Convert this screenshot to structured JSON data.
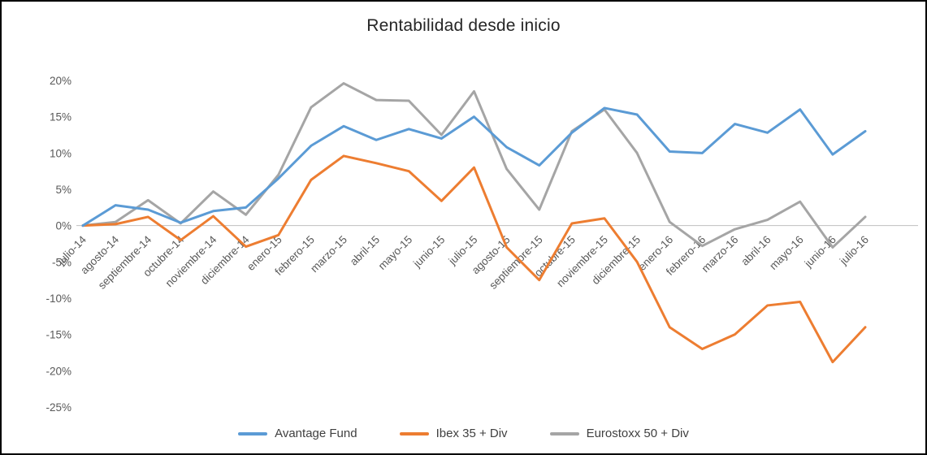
{
  "chart_data": {
    "type": "line",
    "title": "Rentabilidad desde inicio",
    "categories": [
      "julio-14",
      "agosto-14",
      "septiembre-14",
      "octubre-14",
      "noviembre-14",
      "diciembre-14",
      "enero-15",
      "febrero-15",
      "marzo-15",
      "abril-15",
      "mayo-15",
      "junio-15",
      "julio-15",
      "agosto-15",
      "septiembre-15",
      "octubre-15",
      "noviembre-15",
      "diciembre-15",
      "enero-16",
      "febrero-16",
      "marzo-16",
      "abril-16",
      "mayo-16",
      "junio-16",
      "julio-16"
    ],
    "series": [
      {
        "name": "Avantage Fund",
        "color": "#5B9BD5",
        "values": [
          0,
          2.8,
          2.2,
          0.4,
          2.0,
          2.5,
          6.5,
          11.0,
          13.7,
          11.8,
          13.3,
          12.0,
          15.0,
          10.8,
          8.3,
          12.8,
          16.2,
          15.3,
          10.2,
          10.0,
          14.0,
          12.8,
          16.0,
          9.8,
          13.0
        ]
      },
      {
        "name": "Ibex 35 + Div",
        "color": "#ED7D31",
        "values": [
          0,
          0.2,
          1.2,
          -2.0,
          1.3,
          -2.9,
          -1.3,
          6.3,
          9.6,
          8.6,
          7.5,
          3.4,
          8.0,
          -3.0,
          -7.5,
          0.3,
          1.0,
          -5.0,
          -14.0,
          -17.0,
          -15.0,
          -11.0,
          -10.5,
          -18.8,
          -14.0
        ]
      },
      {
        "name": "Eurostoxx 50 + Div",
        "color": "#A5A5A5",
        "values": [
          0,
          0.5,
          3.5,
          0.3,
          4.7,
          1.5,
          7.0,
          16.3,
          19.6,
          17.3,
          17.2,
          12.5,
          18.5,
          7.8,
          2.2,
          13.0,
          16.0,
          10.0,
          0.5,
          -2.8,
          -0.5,
          0.8,
          3.3,
          -3.0,
          1.2
        ]
      }
    ],
    "ylim": [
      -25,
      20
    ],
    "ytick_step": 5,
    "y_tick_format": "percent",
    "legend_position": "bottom",
    "grid": false
  }
}
